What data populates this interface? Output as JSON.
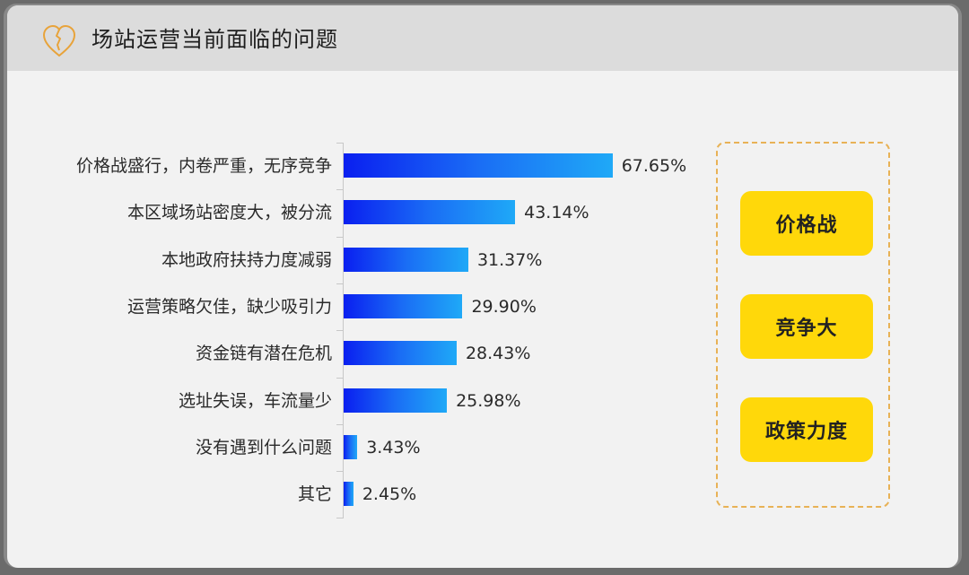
{
  "header": {
    "title": "场站运营当前面临的问题",
    "icon": "broken-heart-icon",
    "icon_color": "#e8a33a"
  },
  "chart_data": {
    "type": "bar",
    "orientation": "horizontal",
    "title": "场站运营当前面临的问题",
    "xlabel": "",
    "ylabel": "",
    "categories": [
      "价格战盛行，内卷严重，无序竞争",
      "本区域场站密度大，被分流",
      "本地政府扶持力度减弱",
      "运营策略欠佳，缺少吸引力",
      "资金链有潜在危机",
      "选址失误，车流量少",
      "没有遇到什么问题",
      "其它"
    ],
    "values": [
      67.65,
      43.14,
      31.37,
      29.9,
      28.43,
      25.98,
      3.43,
      2.45
    ],
    "value_labels": [
      "67.65%",
      "43.14%",
      "31.37%",
      "29.90%",
      "28.43%",
      "25.98%",
      "3.43%",
      "2.45%"
    ],
    "unit": "%",
    "grid": false,
    "legend": null,
    "bar_gradient": [
      "#0a1ff0",
      "#1fa9f7"
    ]
  },
  "rows": [
    {
      "label": "价格战盛行，内卷严重，无序竞争",
      "value": "67.65%",
      "pct": 67.65
    },
    {
      "label": "本区域场站密度大，被分流",
      "value": "43.14%",
      "pct": 43.14
    },
    {
      "label": "本地政府扶持力度减弱",
      "value": "31.37%",
      "pct": 31.37
    },
    {
      "label": "运营策略欠佳，缺少吸引力",
      "value": "29.90%",
      "pct": 29.9
    },
    {
      "label": "资金链有潜在危机",
      "value": "28.43%",
      "pct": 28.43
    },
    {
      "label": "选址失误，车流量少",
      "value": "25.98%",
      "pct": 25.98
    },
    {
      "label": "没有遇到什么问题",
      "value": "3.43%",
      "pct": 3.43
    },
    {
      "label": "其它",
      "value": "2.45%",
      "pct": 2.45
    }
  ],
  "summary_tags": [
    {
      "label": "价格战"
    },
    {
      "label": "竞争大"
    },
    {
      "label": "政策力度"
    }
  ],
  "colors": {
    "tag_bg": "#ffd80a",
    "tag_border_dashed": "#e8b256",
    "header_bg": "#dcdcdc",
    "card_bg": "#f2f2f2"
  }
}
